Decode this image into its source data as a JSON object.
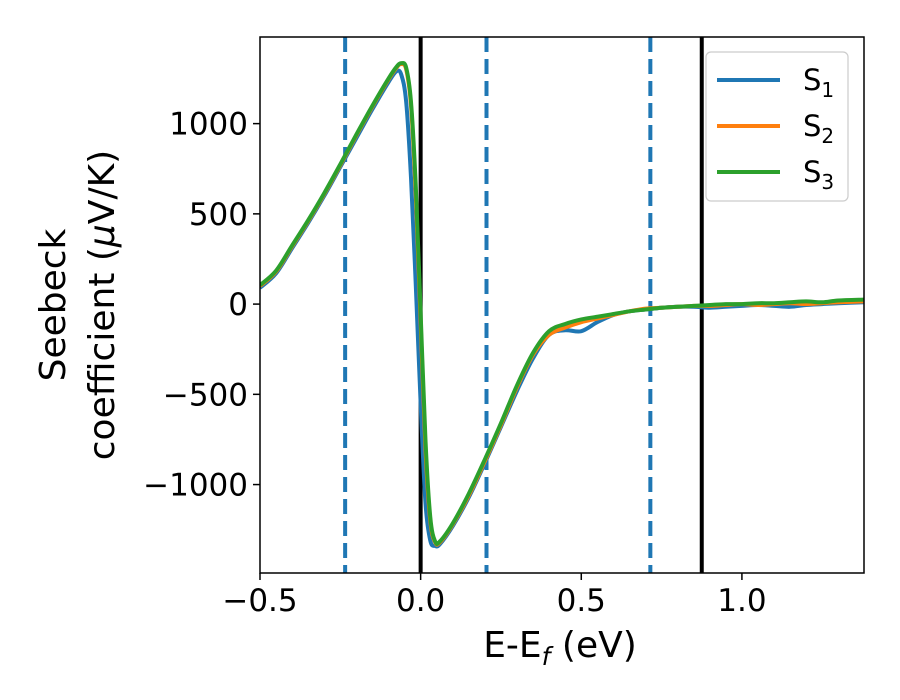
{
  "chart_data": {
    "type": "line",
    "title": "",
    "xlabel": "E-E",
    "xlabel_sub": "f",
    "xlabel_unit": " (eV)",
    "ylabel_line1": "Seebeck",
    "ylabel_line2_pre": "coefficient  (",
    "ylabel_mu": "μ",
    "ylabel_line2_post": "V/K)",
    "xlim": [
      -0.5,
      1.38
    ],
    "ylim": [
      -1490,
      1480
    ],
    "x_ticks": [
      -0.5,
      0.0,
      0.5,
      1.0
    ],
    "x_tick_labels": [
      "−0.5",
      "0.0",
      "0.5",
      "1.0"
    ],
    "y_ticks": [
      -1000,
      -500,
      0,
      500,
      1000
    ],
    "y_tick_labels": [
      "−1000",
      "−500",
      "0",
      "500",
      "1000"
    ],
    "grid": false,
    "legend_position": "top-right",
    "vlines_solid": [
      0.0,
      0.875
    ],
    "vlines_dashed": [
      -0.235,
      0.205,
      0.715
    ],
    "solid_line_color": "#000000",
    "dashed_line_color": "#1f77b4",
    "series": [
      {
        "name": "S",
        "sub": "1",
        "color": "#1f77b4",
        "x": [
          -0.5,
          -0.45,
          -0.4,
          -0.35,
          -0.3,
          -0.25,
          -0.2,
          -0.15,
          -0.1,
          -0.075,
          -0.06,
          -0.045,
          -0.03,
          -0.015,
          0.0,
          0.015,
          0.03,
          0.045,
          0.06,
          0.1,
          0.15,
          0.2,
          0.25,
          0.3,
          0.35,
          0.4,
          0.45,
          0.5,
          0.55,
          0.6,
          0.65,
          0.7,
          0.75,
          0.8,
          0.85,
          0.9,
          0.95,
          1.0,
          1.05,
          1.1,
          1.15,
          1.2,
          1.25,
          1.3,
          1.38
        ],
        "y": [
          90,
          170,
          310,
          450,
          600,
          760,
          920,
          1080,
          1230,
          1290,
          1270,
          1120,
          700,
          100,
          -550,
          -1100,
          -1310,
          -1340,
          -1330,
          -1230,
          -1070,
          -880,
          -680,
          -480,
          -300,
          -170,
          -145,
          -150,
          -100,
          -60,
          -40,
          -30,
          -20,
          -15,
          -15,
          -20,
          -15,
          -10,
          -5,
          -10,
          -15,
          -5,
          0,
          5,
          10
        ]
      },
      {
        "name": "S",
        "sub": "2",
        "color": "#ff7f0e",
        "x": [
          -0.5,
          -0.45,
          -0.4,
          -0.35,
          -0.3,
          -0.25,
          -0.2,
          -0.15,
          -0.1,
          -0.075,
          -0.06,
          -0.045,
          -0.03,
          -0.015,
          0.0,
          0.015,
          0.03,
          0.045,
          0.06,
          0.1,
          0.15,
          0.2,
          0.25,
          0.3,
          0.35,
          0.4,
          0.45,
          0.5,
          0.55,
          0.6,
          0.65,
          0.7,
          0.75,
          0.8,
          0.85,
          0.9,
          0.95,
          1.0,
          1.05,
          1.1,
          1.15,
          1.2,
          1.25,
          1.3,
          1.38
        ],
        "y": [
          100,
          180,
          320,
          460,
          610,
          770,
          935,
          1095,
          1245,
          1310,
          1330,
          1300,
          1100,
          600,
          -100,
          -800,
          -1200,
          -1320,
          -1320,
          -1220,
          -1060,
          -870,
          -670,
          -460,
          -280,
          -170,
          -130,
          -100,
          -80,
          -60,
          -40,
          -25,
          -20,
          -15,
          -10,
          -10,
          -5,
          0,
          -5,
          0,
          5,
          0,
          5,
          10,
          15
        ]
      },
      {
        "name": "S",
        "sub": "3",
        "color": "#2ca02c",
        "x": [
          -0.5,
          -0.45,
          -0.4,
          -0.35,
          -0.3,
          -0.25,
          -0.2,
          -0.15,
          -0.1,
          -0.075,
          -0.06,
          -0.045,
          -0.03,
          -0.015,
          0.0,
          0.015,
          0.03,
          0.045,
          0.06,
          0.1,
          0.15,
          0.2,
          0.25,
          0.3,
          0.35,
          0.4,
          0.45,
          0.5,
          0.55,
          0.6,
          0.65,
          0.7,
          0.75,
          0.8,
          0.85,
          0.9,
          0.95,
          1.0,
          1.05,
          1.1,
          1.15,
          1.2,
          1.25,
          1.3,
          1.38
        ],
        "y": [
          105,
          185,
          325,
          465,
          615,
          775,
          940,
          1100,
          1250,
          1315,
          1335,
          1310,
          1120,
          650,
          -50,
          -750,
          -1180,
          -1315,
          -1315,
          -1215,
          -1050,
          -860,
          -660,
          -450,
          -270,
          -150,
          -110,
          -85,
          -70,
          -55,
          -40,
          -30,
          -20,
          -15,
          -10,
          -5,
          0,
          0,
          5,
          5,
          10,
          15,
          10,
          20,
          25
        ]
      }
    ]
  }
}
